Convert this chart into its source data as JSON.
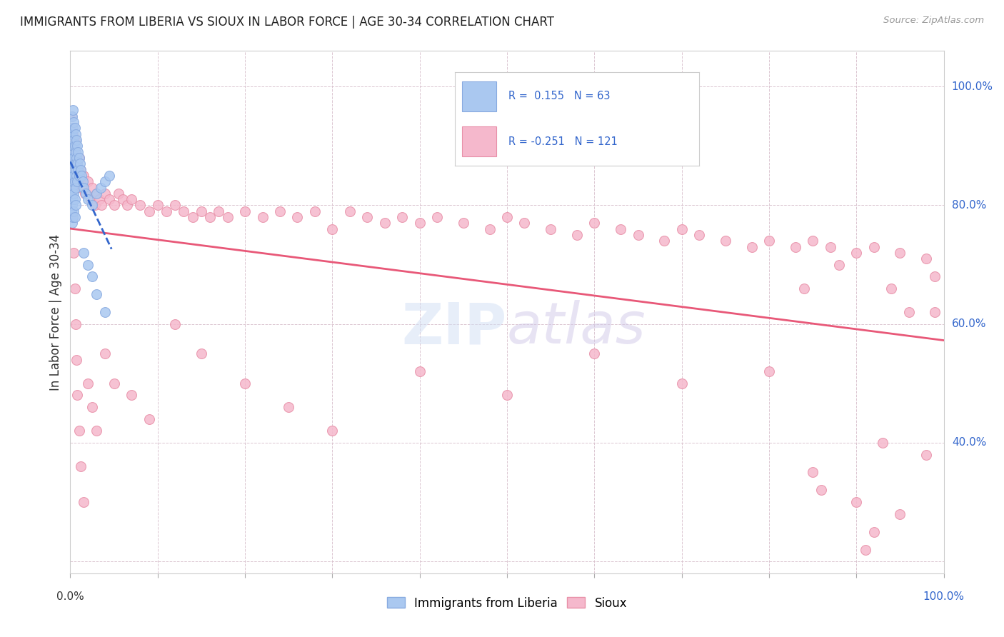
{
  "title": "IMMIGRANTS FROM LIBERIA VS SIOUX IN LABOR FORCE | AGE 30-34 CORRELATION CHART",
  "source": "Source: ZipAtlas.com",
  "ylabel": "In Labor Force | Age 30-34",
  "x_min": 0.0,
  "x_max": 1.0,
  "y_min": 0.18,
  "y_max": 1.06,
  "grid_color": "#ddc8d0",
  "background_color": "#ffffff",
  "liberia_color": "#aac8f0",
  "liberia_edge": "#88aae0",
  "sioux_color": "#f5b8cc",
  "sioux_edge": "#e890a8",
  "liberia_R": 0.155,
  "liberia_N": 63,
  "sioux_R": -0.251,
  "sioux_N": 121,
  "legend_R_color": "#3366cc",
  "legend_label1": "Immigrants from Liberia",
  "legend_label2": "Sioux",
  "watermark": "ZIPatlas",
  "liberia_trend_color": "#3366cc",
  "sioux_trend_color": "#e85878",
  "liberia_x": [
    0.001,
    0.001,
    0.001,
    0.001,
    0.001,
    0.002,
    0.002,
    0.002,
    0.002,
    0.002,
    0.002,
    0.002,
    0.003,
    0.003,
    0.003,
    0.003,
    0.003,
    0.003,
    0.003,
    0.004,
    0.004,
    0.004,
    0.004,
    0.004,
    0.004,
    0.005,
    0.005,
    0.005,
    0.005,
    0.005,
    0.005,
    0.006,
    0.006,
    0.006,
    0.006,
    0.006,
    0.007,
    0.007,
    0.007,
    0.008,
    0.008,
    0.008,
    0.009,
    0.009,
    0.01,
    0.01,
    0.011,
    0.012,
    0.013,
    0.014,
    0.015,
    0.018,
    0.02,
    0.025,
    0.03,
    0.035,
    0.04,
    0.045,
    0.015,
    0.02,
    0.025,
    0.03,
    0.04
  ],
  "liberia_y": [
    0.92,
    0.88,
    0.85,
    0.82,
    0.79,
    0.95,
    0.92,
    0.89,
    0.86,
    0.83,
    0.8,
    0.77,
    0.96,
    0.93,
    0.9,
    0.87,
    0.84,
    0.81,
    0.78,
    0.94,
    0.91,
    0.88,
    0.85,
    0.82,
    0.79,
    0.93,
    0.9,
    0.87,
    0.84,
    0.81,
    0.78,
    0.92,
    0.89,
    0.86,
    0.83,
    0.8,
    0.91,
    0.88,
    0.85,
    0.9,
    0.87,
    0.84,
    0.89,
    0.86,
    0.88,
    0.85,
    0.87,
    0.86,
    0.85,
    0.84,
    0.83,
    0.82,
    0.81,
    0.8,
    0.82,
    0.83,
    0.84,
    0.85,
    0.72,
    0.7,
    0.68,
    0.65,
    0.62
  ],
  "sioux_x": [
    0.001,
    0.002,
    0.002,
    0.003,
    0.003,
    0.004,
    0.004,
    0.005,
    0.005,
    0.006,
    0.006,
    0.007,
    0.007,
    0.008,
    0.009,
    0.01,
    0.011,
    0.012,
    0.013,
    0.015,
    0.017,
    0.02,
    0.023,
    0.025,
    0.028,
    0.03,
    0.033,
    0.036,
    0.04,
    0.045,
    0.05,
    0.055,
    0.06,
    0.065,
    0.07,
    0.08,
    0.09,
    0.1,
    0.11,
    0.12,
    0.13,
    0.14,
    0.15,
    0.16,
    0.17,
    0.18,
    0.2,
    0.22,
    0.24,
    0.26,
    0.28,
    0.3,
    0.32,
    0.34,
    0.36,
    0.38,
    0.4,
    0.42,
    0.45,
    0.48,
    0.5,
    0.52,
    0.55,
    0.58,
    0.6,
    0.63,
    0.65,
    0.68,
    0.7,
    0.72,
    0.75,
    0.78,
    0.8,
    0.83,
    0.85,
    0.87,
    0.9,
    0.92,
    0.95,
    0.98,
    0.002,
    0.003,
    0.004,
    0.005,
    0.006,
    0.007,
    0.008,
    0.01,
    0.012,
    0.015,
    0.02,
    0.025,
    0.03,
    0.04,
    0.05,
    0.07,
    0.09,
    0.12,
    0.15,
    0.2,
    0.25,
    0.3,
    0.4,
    0.5,
    0.6,
    0.7,
    0.8,
    0.85,
    0.9,
    0.95,
    0.98,
    0.99,
    0.99,
    0.94,
    0.96,
    0.88,
    0.84,
    0.86,
    0.92,
    0.91,
    0.93
  ],
  "sioux_y": [
    0.95,
    0.93,
    0.88,
    0.92,
    0.86,
    0.9,
    0.84,
    0.91,
    0.85,
    0.89,
    0.83,
    0.88,
    0.87,
    0.86,
    0.85,
    0.88,
    0.84,
    0.86,
    0.83,
    0.85,
    0.82,
    0.84,
    0.81,
    0.83,
    0.8,
    0.82,
    0.81,
    0.8,
    0.82,
    0.81,
    0.8,
    0.82,
    0.81,
    0.8,
    0.81,
    0.8,
    0.79,
    0.8,
    0.79,
    0.8,
    0.79,
    0.78,
    0.79,
    0.78,
    0.79,
    0.78,
    0.79,
    0.78,
    0.79,
    0.78,
    0.79,
    0.76,
    0.79,
    0.78,
    0.77,
    0.78,
    0.77,
    0.78,
    0.77,
    0.76,
    0.78,
    0.77,
    0.76,
    0.75,
    0.77,
    0.76,
    0.75,
    0.74,
    0.76,
    0.75,
    0.74,
    0.73,
    0.74,
    0.73,
    0.74,
    0.73,
    0.72,
    0.73,
    0.72,
    0.71,
    0.84,
    0.78,
    0.72,
    0.66,
    0.6,
    0.54,
    0.48,
    0.42,
    0.36,
    0.3,
    0.5,
    0.46,
    0.42,
    0.55,
    0.5,
    0.48,
    0.44,
    0.6,
    0.55,
    0.5,
    0.46,
    0.42,
    0.52,
    0.48,
    0.55,
    0.5,
    0.52,
    0.35,
    0.3,
    0.28,
    0.38,
    0.68,
    0.62,
    0.66,
    0.62,
    0.7,
    0.66,
    0.32,
    0.25,
    0.22,
    0.4
  ]
}
